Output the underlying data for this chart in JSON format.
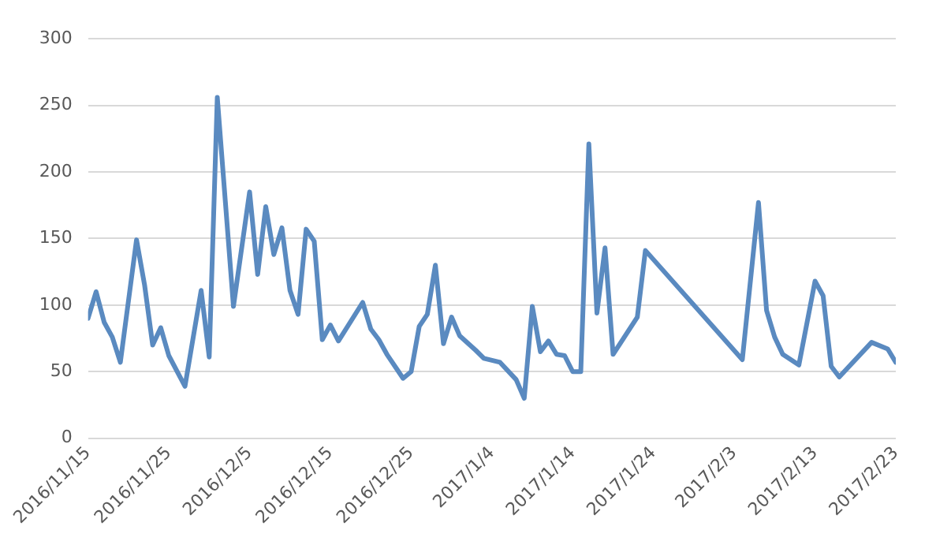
{
  "chart_data": {
    "type": "line",
    "x": [
      "2016-11-15",
      "2016-11-16",
      "2016-11-17",
      "2016-11-18",
      "2016-11-19",
      "2016-11-21",
      "2016-11-22",
      "2016-11-23",
      "2016-11-24",
      "2016-11-25",
      "2016-11-27",
      "2016-11-29",
      "2016-11-30",
      "2016-12-01",
      "2016-12-03",
      "2016-12-05",
      "2016-12-06",
      "2016-12-07",
      "2016-12-08",
      "2016-12-09",
      "2016-12-10",
      "2016-12-11",
      "2016-12-12",
      "2016-12-13",
      "2016-12-14",
      "2016-12-15",
      "2016-12-16",
      "2016-12-19",
      "2016-12-20",
      "2016-12-21",
      "2016-12-22",
      "2016-12-24",
      "2016-12-25",
      "2016-12-26",
      "2016-12-27",
      "2016-12-28",
      "2016-12-29",
      "2016-12-30",
      "2016-12-31",
      "2017-01-02",
      "2017-01-03",
      "2017-01-05",
      "2017-01-07",
      "2017-01-08",
      "2017-01-09",
      "2017-01-10",
      "2017-01-11",
      "2017-01-12",
      "2017-01-13",
      "2017-01-14",
      "2017-01-15",
      "2017-01-16",
      "2017-01-17",
      "2017-01-18",
      "2017-01-19",
      "2017-01-22",
      "2017-01-23",
      "2017-02-04",
      "2017-02-06",
      "2017-02-07",
      "2017-02-08",
      "2017-02-09",
      "2017-02-11",
      "2017-02-13",
      "2017-02-14",
      "2017-02-15",
      "2017-02-16",
      "2017-02-20",
      "2017-02-22",
      "2017-02-23"
    ],
    "series": [
      {
        "color": "#5a8ac0",
        "values": [
          90,
          110,
          87,
          76,
          57,
          149,
          115,
          70,
          83,
          62,
          39,
          111,
          61,
          256,
          99,
          185,
          123,
          174,
          138,
          158,
          111,
          93,
          157,
          148,
          74,
          85,
          73,
          102,
          82,
          74,
          63,
          45,
          50,
          84,
          93,
          130,
          71,
          91,
          77,
          66,
          60,
          57,
          44,
          30,
          99,
          65,
          73,
          63,
          62,
          50,
          50,
          221,
          94,
          143,
          63,
          91,
          141,
          59,
          177,
          96,
          76,
          63,
          55,
          118,
          107,
          54,
          46,
          72,
          67,
          57
        ]
      }
    ],
    "xlim": [
      "2016-11-15",
      "2017-02-23"
    ],
    "xticks": [
      {
        "value": "2016-11-15",
        "label": "2016/11/15"
      },
      {
        "value": "2016-11-25",
        "label": "2016/11/25"
      },
      {
        "value": "2016-12-05",
        "label": "2016/12/5"
      },
      {
        "value": "2016-12-15",
        "label": "2016/12/15"
      },
      {
        "value": "2016-12-25",
        "label": "2016/12/25"
      },
      {
        "value": "2017-01-04",
        "label": "2017/1/4"
      },
      {
        "value": "2017-01-14",
        "label": "2017/1/14"
      },
      {
        "value": "2017-01-24",
        "label": "2017/1/24"
      },
      {
        "value": "2017-02-03",
        "label": "2017/2/3"
      },
      {
        "value": "2017-02-13",
        "label": "2017/2/13"
      },
      {
        "value": "2017-02-23",
        "label": "2017/2/23"
      }
    ],
    "ylim": [
      0,
      300
    ],
    "yticks": [
      0,
      50,
      100,
      150,
      200,
      250,
      300
    ],
    "grid": "y",
    "legend": false,
    "marker": "none",
    "line_style": "solid"
  }
}
